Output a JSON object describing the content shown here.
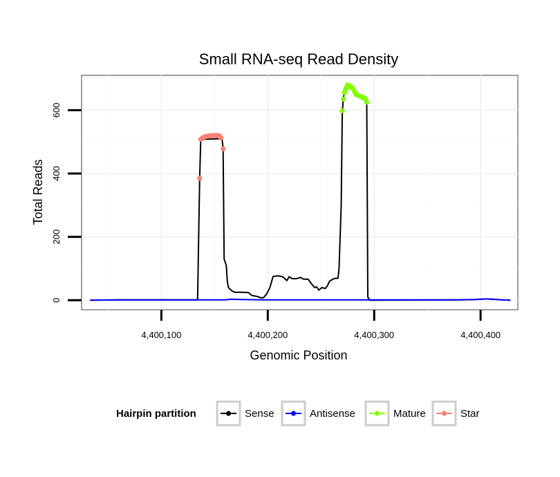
{
  "chart_data": {
    "type": "line",
    "title": "Small RNA-seq Read Density",
    "xlabel": "Genomic Position",
    "ylabel": "Total Reads",
    "xlim": [
      4400025,
      4400435
    ],
    "ylim": [
      -30,
      710
    ],
    "x_ticks": [
      4400100,
      4400200,
      4400300,
      4400400
    ],
    "x_tick_labels": [
      "4,400,100",
      "4,400,200",
      "4,400,300",
      "4,400,400"
    ],
    "y_ticks": [
      0,
      200,
      400,
      600
    ],
    "y_tick_labels": [
      "0",
      "200",
      "400",
      "600"
    ],
    "grid": true,
    "legend": {
      "title": "Hairpin partition",
      "position": "bottom",
      "entries": [
        {
          "name": "Sense",
          "color": "#000000"
        },
        {
          "name": "Antisense",
          "color": "#0000ff"
        },
        {
          "name": "Mature",
          "color": "#7fff00"
        },
        {
          "name": "Star",
          "color": "#fa8072"
        }
      ]
    },
    "series": [
      {
        "name": "Sense",
        "color": "#000000",
        "points": [
          [
            4400033,
            0
          ],
          [
            4400060,
            1
          ],
          [
            4400134,
            1
          ],
          [
            4400136,
            385
          ],
          [
            4400137,
            508
          ],
          [
            4400157,
            510
          ],
          [
            4400158,
            478
          ],
          [
            4400159,
            130
          ],
          [
            4400161,
            110
          ],
          [
            4400162,
            60
          ],
          [
            4400163,
            40
          ],
          [
            4400166,
            30
          ],
          [
            4400169,
            25
          ],
          [
            4400175,
            25
          ],
          [
            4400182,
            24
          ],
          [
            4400185,
            15
          ],
          [
            4400190,
            12
          ],
          [
            4400193,
            8
          ],
          [
            4400196,
            8
          ],
          [
            4400199,
            20
          ],
          [
            4400202,
            40
          ],
          [
            4400205,
            75
          ],
          [
            4400210,
            77
          ],
          [
            4400214,
            74
          ],
          [
            4400218,
            62
          ],
          [
            4400220,
            74
          ],
          [
            4400223,
            68
          ],
          [
            4400227,
            68
          ],
          [
            4400231,
            72
          ],
          [
            4400233,
            67
          ],
          [
            4400238,
            66
          ],
          [
            4400241,
            52
          ],
          [
            4400244,
            40
          ],
          [
            4400246,
            42
          ],
          [
            4400248,
            32
          ],
          [
            4400251,
            40
          ],
          [
            4400254,
            37
          ],
          [
            4400256,
            45
          ],
          [
            4400258,
            60
          ],
          [
            4400262,
            68
          ],
          [
            4400266,
            70
          ],
          [
            4400267,
            100
          ],
          [
            4400268,
            200
          ],
          [
            4400269,
            300
          ],
          [
            4400270,
            590
          ],
          [
            4400271,
            640
          ],
          [
            4400273,
            665
          ],
          [
            4400275,
            680
          ],
          [
            4400278,
            675
          ],
          [
            4400281,
            668
          ],
          [
            4400284,
            650
          ],
          [
            4400287,
            645
          ],
          [
            4400289,
            640
          ],
          [
            4400291,
            638
          ],
          [
            4400293,
            620
          ],
          [
            4400294,
            10
          ],
          [
            4400296,
            0
          ],
          [
            4400380,
            1
          ],
          [
            4400395,
            2
          ],
          [
            4400405,
            4
          ],
          [
            4400412,
            3
          ],
          [
            4400420,
            1
          ],
          [
            4400428,
            0
          ]
        ]
      },
      {
        "name": "Antisense",
        "color": "#0000ff",
        "points": [
          [
            4400033,
            0
          ],
          [
            4400060,
            1
          ],
          [
            4400160,
            1
          ],
          [
            4400165,
            3
          ],
          [
            4400175,
            2
          ],
          [
            4400200,
            1
          ],
          [
            4400294,
            1
          ],
          [
            4400380,
            1
          ],
          [
            4400395,
            2
          ],
          [
            4400405,
            4
          ],
          [
            4400412,
            3
          ],
          [
            4400420,
            1
          ],
          [
            4400428,
            0
          ]
        ]
      },
      {
        "name": "Mature",
        "color": "#7fff00",
        "points": [
          [
            4400270,
            598
          ],
          [
            4400271,
            635
          ],
          [
            4400272,
            655
          ],
          [
            4400273,
            665
          ],
          [
            4400274,
            672
          ],
          [
            4400275,
            680
          ],
          [
            4400276,
            678
          ],
          [
            4400277,
            673
          ],
          [
            4400278,
            675
          ],
          [
            4400279,
            672
          ],
          [
            4400280,
            668
          ],
          [
            4400281,
            662
          ],
          [
            4400282,
            656
          ],
          [
            4400283,
            650
          ],
          [
            4400284,
            648
          ],
          [
            4400285,
            646
          ],
          [
            4400286,
            645
          ],
          [
            4400287,
            644
          ],
          [
            4400288,
            643
          ],
          [
            4400289,
            640
          ],
          [
            4400290,
            640
          ],
          [
            4400291,
            638
          ],
          [
            4400292,
            634
          ],
          [
            4400293,
            625
          ]
        ]
      },
      {
        "name": "Star",
        "color": "#fa8072",
        "points": [
          [
            4400136,
            385
          ],
          [
            4400137,
            508
          ],
          [
            4400138,
            510
          ],
          [
            4400139,
            513
          ],
          [
            4400140,
            515
          ],
          [
            4400141,
            516
          ],
          [
            4400142,
            517
          ],
          [
            4400143,
            518
          ],
          [
            4400144,
            518
          ],
          [
            4400145,
            519
          ],
          [
            4400146,
            519
          ],
          [
            4400147,
            520
          ],
          [
            4400148,
            520
          ],
          [
            4400149,
            520
          ],
          [
            4400150,
            520
          ],
          [
            4400151,
            520
          ],
          [
            4400152,
            520
          ],
          [
            4400153,
            520
          ],
          [
            4400154,
            519
          ],
          [
            4400155,
            518
          ],
          [
            4400156,
            512
          ],
          [
            4400158,
            478
          ]
        ]
      }
    ]
  }
}
